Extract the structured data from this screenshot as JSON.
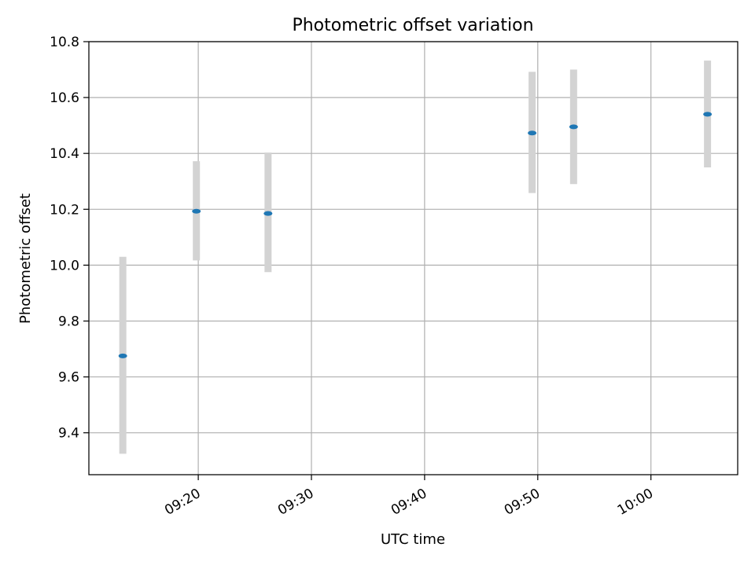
{
  "chart_data": {
    "type": "scatter",
    "title": "Photometric offset variation",
    "xlabel": "UTC time",
    "ylabel": "Photometric offset",
    "xlim": [
      "09:10:20",
      "10:07:40"
    ],
    "ylim": [
      9.25,
      10.8
    ],
    "grid": true,
    "xticks": [
      "09:20",
      "09:30",
      "09:40",
      "09:50",
      "10:00"
    ],
    "yticks": [
      "9.4",
      "9.6",
      "9.8",
      "10.0",
      "10.2",
      "10.4",
      "10.6",
      "10.8"
    ],
    "points": [
      {
        "x": "09:13:20",
        "y": 9.675,
        "yerr_low": 9.325,
        "yerr_high": 10.03
      },
      {
        "x": "09:19:50",
        "y": 10.193,
        "yerr_low": 10.017,
        "yerr_high": 10.372
      },
      {
        "x": "09:26:10",
        "y": 10.185,
        "yerr_low": 9.975,
        "yerr_high": 10.403
      },
      {
        "x": "09:49:30",
        "y": 10.473,
        "yerr_low": 10.258,
        "yerr_high": 10.692
      },
      {
        "x": "09:53:10",
        "y": 10.495,
        "yerr_low": 10.29,
        "yerr_high": 10.7
      },
      {
        "x": "10:05:00",
        "y": 10.54,
        "yerr_low": 10.35,
        "yerr_high": 10.732
      }
    ],
    "colors": {
      "marker": "#1f77b4",
      "errorbar": "#d3d3d3",
      "grid": "#b0b0b0",
      "axes": "#000000"
    }
  }
}
